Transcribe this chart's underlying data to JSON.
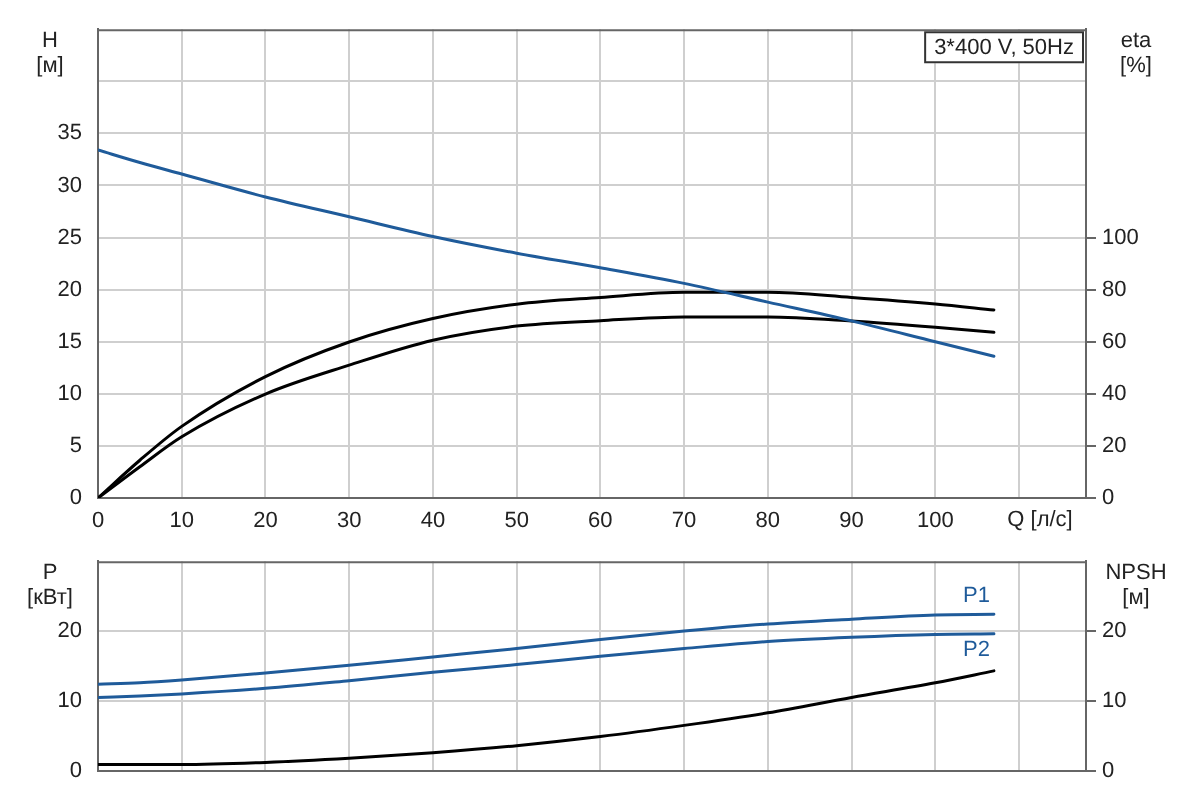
{
  "chart_data": [
    {
      "type": "line",
      "annotations": [
        "3*400 V, 50Hz"
      ],
      "xlabel": "Q [л/с]",
      "ylabel": "H [м]",
      "y2label": "eta [%]",
      "x": [
        0,
        5,
        10,
        20,
        30,
        40,
        50,
        60,
        70,
        80,
        90,
        100,
        107
      ],
      "series": [
        {
          "color": "#1f5b9a",
          "values": [
            33.4,
            32.2,
            31.1,
            28.9,
            27.0,
            25.1,
            23.5,
            22.1,
            20.6,
            18.8,
            17.0,
            15.0,
            13.6
          ]
        },
        {
          "color": "#000000",
          "axis": "y2",
          "values": [
            0,
            14.5,
            27.5,
            46.6,
            59.9,
            68.9,
            74.4,
            77.0,
            79.0,
            79.0,
            77.0,
            74.5,
            72.2
          ]
        },
        {
          "color": "#000000",
          "axis": "y2",
          "values": [
            0,
            12,
            23.5,
            39.9,
            51.0,
            60.6,
            66.0,
            68.1,
            69.5,
            69.5,
            68.0,
            65.6,
            63.6
          ]
        }
      ],
      "xlim": [
        0,
        118
      ],
      "xticks": [
        0,
        10,
        20,
        30,
        40,
        50,
        60,
        70,
        80,
        90,
        100,
        {
          "value": 110,
          "label": null
        }
      ],
      "ylim": [
        0,
        45
      ],
      "yticks": [
        0,
        5,
        10,
        15,
        20,
        25,
        30,
        35,
        {
          "value": 40,
          "label": null
        }
      ],
      "y2lim": [
        0,
        180
      ],
      "y2ticks": [
        0,
        20,
        40,
        60,
        80,
        100
      ],
      "grid": true,
      "marker": "none"
    },
    {
      "type": "line",
      "ylabel": "P [кВт]",
      "y2label": "NPSH [м]",
      "x": [
        0,
        5,
        10,
        20,
        30,
        40,
        50,
        60,
        70,
        80,
        90,
        100,
        107
      ],
      "series": [
        {
          "name": "P1",
          "color": "#1f5b9a",
          "values": [
            12.4,
            12.6,
            13.0,
            14.0,
            15.1,
            16.3,
            17.5,
            18.8,
            20.0,
            21.0,
            21.7,
            22.3,
            22.4
          ]
        },
        {
          "name": "P2",
          "color": "#1f5b9a",
          "values": [
            10.5,
            10.7,
            11.0,
            11.8,
            12.9,
            14.1,
            15.2,
            16.4,
            17.5,
            18.5,
            19.1,
            19.5,
            19.6
          ]
        },
        {
          "color": "#000000",
          "axis": "y2",
          "values": [
            0.9,
            0.9,
            0.9,
            1.2,
            1.8,
            2.6,
            3.6,
            4.9,
            6.5,
            8.3,
            10.5,
            12.6,
            14.3
          ]
        }
      ],
      "xlim": [
        0,
        118
      ],
      "xticks": [
        0,
        10,
        20,
        30,
        40,
        50,
        60,
        70,
        80,
        90,
        100,
        110
      ],
      "ylim": [
        0,
        30
      ],
      "yticks": [
        0,
        10,
        20
      ],
      "y2lim": [
        0,
        30
      ],
      "y2ticks": [
        0,
        10,
        20
      ],
      "tick_labels": "y",
      "grid": true,
      "marker": "none"
    }
  ]
}
